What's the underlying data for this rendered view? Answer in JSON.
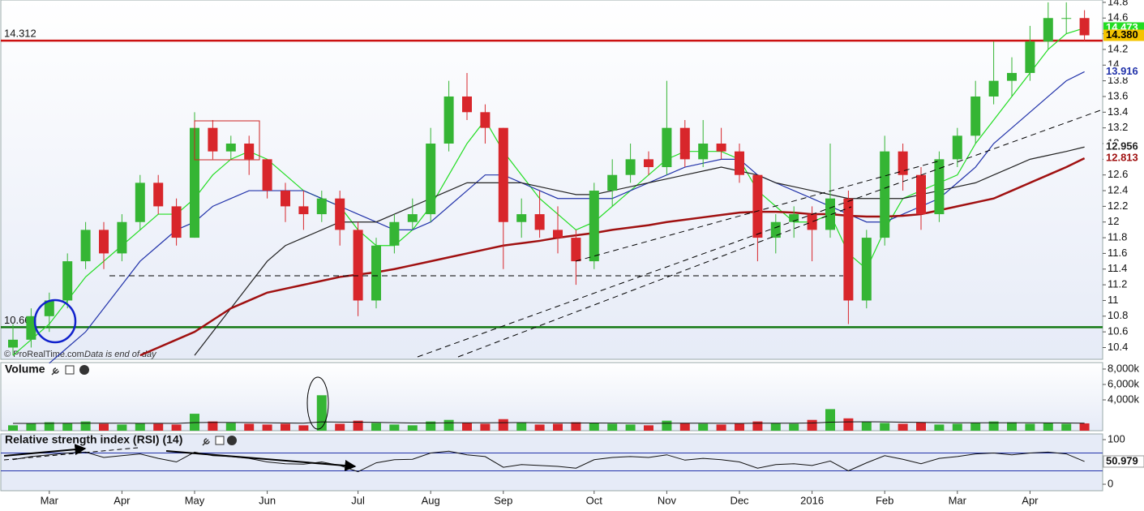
{
  "chart_data": [
    {
      "type": "candlestick",
      "categories": [
        null,
        null,
        "Mar",
        null,
        null,
        null,
        "Apr",
        null,
        null,
        null,
        "May",
        null,
        null,
        null,
        "Jun",
        null,
        null,
        null,
        null,
        "Jul",
        null,
        null,
        null,
        "Aug",
        null,
        null,
        null,
        "Sep",
        null,
        null,
        null,
        null,
        "Oct",
        null,
        null,
        null,
        "Nov",
        null,
        null,
        null,
        "Dec",
        null,
        null,
        null,
        "2016",
        null,
        null,
        null,
        "Feb",
        null,
        null,
        null,
        "Mar",
        null,
        null,
        null,
        "Apr",
        null,
        null,
        null
      ],
      "open": [
        10.4,
        10.5,
        10.8,
        11.0,
        11.5,
        11.9,
        11.6,
        12.0,
        12.5,
        12.2,
        11.8,
        13.2,
        12.9,
        13.0,
        12.8,
        12.4,
        12.2,
        12.1,
        12.3,
        11.9,
        11.0,
        11.7,
        12.0,
        12.1,
        13.0,
        13.6,
        13.4,
        13.2,
        12.0,
        12.1,
        11.9,
        11.8,
        11.5,
        12.4,
        12.6,
        12.8,
        12.7,
        13.2,
        12.8,
        13.0,
        12.9,
        12.6,
        11.8,
        12.0,
        12.1,
        11.9,
        12.3,
        11.0,
        11.8,
        12.9,
        12.6,
        12.1,
        12.8,
        13.1,
        13.6,
        13.8,
        13.9,
        14.3,
        14.6,
        14.6
      ],
      "high": [
        10.7,
        10.9,
        11.1,
        11.6,
        12.0,
        12.0,
        12.1,
        12.6,
        12.6,
        12.3,
        13.4,
        13.3,
        13.1,
        13.1,
        12.8,
        12.5,
        12.4,
        12.4,
        12.4,
        12.0,
        11.8,
        12.1,
        12.3,
        13.2,
        13.8,
        13.9,
        13.5,
        13.2,
        12.3,
        12.4,
        12.2,
        11.9,
        12.5,
        12.8,
        13.0,
        12.9,
        13.8,
        13.3,
        13.3,
        13.2,
        13.0,
        12.6,
        12.1,
        12.2,
        12.2,
        13.0,
        12.4,
        11.9,
        13.1,
        13.0,
        12.7,
        12.9,
        13.2,
        13.8,
        14.3,
        14.1,
        14.5,
        14.8,
        14.8,
        14.7
      ],
      "low": [
        10.3,
        10.4,
        10.6,
        10.9,
        11.4,
        11.4,
        11.5,
        11.9,
        12.1,
        11.7,
        11.8,
        12.8,
        12.8,
        12.6,
        12.3,
        12.0,
        11.9,
        12.0,
        11.7,
        10.8,
        10.9,
        11.6,
        11.9,
        12.0,
        12.9,
        13.3,
        13.0,
        11.4,
        11.8,
        11.8,
        11.6,
        11.2,
        11.4,
        12.2,
        12.5,
        12.6,
        12.6,
        12.7,
        12.7,
        12.8,
        12.5,
        11.5,
        11.6,
        11.8,
        11.5,
        11.8,
        10.7,
        10.9,
        11.7,
        12.4,
        11.9,
        12.0,
        12.7,
        13.0,
        13.5,
        13.6,
        13.8,
        14.2,
        14.4,
        14.3
      ],
      "close": [
        10.5,
        10.8,
        11.0,
        11.5,
        11.9,
        11.6,
        12.0,
        12.5,
        12.2,
        11.8,
        13.2,
        12.9,
        13.0,
        12.8,
        12.4,
        12.2,
        12.1,
        12.3,
        11.9,
        11.0,
        11.7,
        12.0,
        12.1,
        13.0,
        13.6,
        13.4,
        13.2,
        12.0,
        12.1,
        11.9,
        11.8,
        11.5,
        12.4,
        12.6,
        12.8,
        12.7,
        13.2,
        12.8,
        13.0,
        12.9,
        12.6,
        11.8,
        12.0,
        12.1,
        11.9,
        12.3,
        11.0,
        11.8,
        12.9,
        12.6,
        12.1,
        12.8,
        13.1,
        13.6,
        13.8,
        13.9,
        14.3,
        14.6,
        14.6,
        14.38
      ],
      "up_color": "#35b534",
      "down_color": "#d8262b",
      "series": [
        {
          "color": "#22dd22",
          "values": [
            10.3,
            10.5,
            10.7,
            11.0,
            11.3,
            11.5,
            11.7,
            11.9,
            12.1,
            12.1,
            12.3,
            12.6,
            12.8,
            12.9,
            12.8,
            12.6,
            12.4,
            12.3,
            12.2,
            11.9,
            11.7,
            11.7,
            11.9,
            12.2,
            12.6,
            13.0,
            13.3,
            12.9,
            12.6,
            12.3,
            12.1,
            11.9,
            12.0,
            12.2,
            12.4,
            12.6,
            12.8,
            12.9,
            12.9,
            12.9,
            12.8,
            12.4,
            12.2,
            12.0,
            12.0,
            12.1,
            11.6,
            11.4,
            11.9,
            12.3,
            12.4,
            12.5,
            12.6,
            13.0,
            13.3,
            13.6,
            13.9,
            14.2,
            14.4,
            14.473
          ]
        },
        {
          "color": "#2233aa",
          "values": [
            null,
            null,
            10.2,
            10.4,
            10.6,
            10.9,
            11.2,
            11.5,
            11.7,
            11.9,
            12.0,
            12.2,
            12.3,
            12.4,
            12.4,
            12.4,
            12.4,
            12.3,
            12.2,
            12.1,
            12.0,
            11.9,
            11.9,
            12.0,
            12.2,
            12.4,
            12.6,
            12.6,
            12.5,
            12.4,
            12.3,
            12.3,
            12.3,
            12.3,
            12.4,
            12.5,
            12.6,
            12.7,
            12.75,
            12.8,
            12.8,
            12.6,
            12.5,
            12.4,
            12.3,
            12.2,
            12.1,
            12.0,
            12.0,
            12.1,
            12.2,
            12.3,
            12.5,
            12.7,
            13.0,
            13.2,
            13.4,
            13.6,
            13.8,
            13.916
          ]
        },
        {
          "color": "#222222",
          "values": [
            null,
            null,
            null,
            null,
            null,
            null,
            null,
            null,
            null,
            null,
            10.3,
            10.6,
            10.9,
            11.2,
            11.5,
            11.7,
            11.8,
            11.9,
            12.0,
            12.0,
            12.0,
            12.1,
            12.2,
            12.3,
            12.4,
            12.5,
            12.5,
            12.5,
            12.5,
            12.45,
            12.4,
            12.35,
            12.35,
            12.4,
            12.45,
            12.5,
            12.55,
            12.6,
            12.65,
            12.7,
            12.65,
            12.6,
            12.5,
            12.45,
            12.4,
            12.35,
            12.3,
            12.3,
            12.3,
            12.3,
            12.35,
            12.4,
            12.45,
            12.5,
            12.6,
            12.7,
            12.8,
            12.85,
            12.9,
            12.956
          ]
        },
        {
          "color": "#a01010",
          "width": 2.5,
          "values": [
            null,
            null,
            null,
            null,
            null,
            null,
            null,
            10.3,
            10.4,
            10.5,
            10.6,
            10.75,
            10.9,
            11.0,
            11.1,
            11.15,
            11.2,
            11.25,
            11.3,
            11.33,
            11.36,
            11.4,
            11.45,
            11.5,
            11.55,
            11.6,
            11.65,
            11.7,
            11.73,
            11.76,
            11.8,
            11.83,
            11.86,
            11.9,
            11.93,
            11.96,
            12.0,
            12.03,
            12.06,
            12.09,
            12.12,
            12.13,
            12.13,
            12.12,
            12.1,
            12.1,
            12.08,
            12.07,
            12.07,
            12.08,
            12.1,
            12.15,
            12.2,
            12.25,
            12.3,
            12.4,
            12.5,
            12.6,
            12.7,
            12.813
          ]
        }
      ],
      "ylim": [
        10.25,
        14.83
      ],
      "yticks": [
        10.4,
        10.6,
        10.8,
        11,
        11.2,
        11.4,
        11.6,
        11.8,
        12,
        12.2,
        12.4,
        12.6,
        12.8,
        13,
        13.2,
        13.4,
        13.6,
        13.8,
        14,
        14.2,
        14.4,
        14.6,
        14.8
      ],
      "levels": [
        {
          "value": 14.312,
          "color": "#cc1111"
        },
        {
          "value": 10.66,
          "color": "#117711"
        }
      ],
      "right_labels": [
        {
          "value": 14.473,
          "label": "14.473",
          "color": "#22dd22",
          "text_color": "#ffffff"
        },
        {
          "value": 14.38,
          "label": "14.380",
          "color": "#f5c400",
          "text_color": "#000000"
        },
        {
          "value": 13.916,
          "label": "13.916",
          "color": "#ffffff",
          "text_color": "#2233aa"
        },
        {
          "value": 12.956,
          "label": "12.956",
          "color": "#ffffff",
          "text_color": "#222222"
        },
        {
          "value": 12.813,
          "label": "12.813",
          "color": "#ffffff",
          "text_color": "#a01010"
        }
      ],
      "source": "© ProRealTime.com",
      "note": "Data is end of day"
    },
    {
      "type": "bar",
      "title": "Volume",
      "values": [
        700000,
        900000,
        1100000,
        1000000,
        1200000,
        900000,
        800000,
        1000000,
        900000,
        800000,
        2200000,
        1200000,
        1000000,
        900000,
        800000,
        900000,
        700000,
        4600000,
        900000,
        1300000,
        1000000,
        800000,
        700000,
        1200000,
        1400000,
        1000000,
        900000,
        1500000,
        1100000,
        800000,
        900000,
        1100000,
        1000000,
        900000,
        800000,
        700000,
        1300000,
        1000000,
        900000,
        800000,
        900000,
        1200000,
        1000000,
        900000,
        1400000,
        2800000,
        1600000,
        1200000,
        1000000,
        900000,
        1100000,
        800000,
        900000,
        1000000,
        1200000,
        1100000,
        900000,
        1000000,
        900000,
        953000
      ],
      "series": [
        {
          "color": "#111111",
          "values": [
            950000,
            950000,
            960000,
            970000,
            980000,
            980000,
            970000,
            960000,
            960000,
            950000,
            1050000,
            1080000,
            1070000,
            1050000,
            1020000,
            1000000,
            980000,
            1150000,
            1120000,
            1100000,
            1080000,
            1040000,
            1000000,
            1000000,
            1020000,
            1030000,
            1020000,
            1040000,
            1050000,
            1030000,
            1010000,
            1000000,
            1000000,
            990000,
            970000,
            950000,
            970000,
            980000,
            970000,
            960000,
            950000,
            970000,
            980000,
            980000,
            1000000,
            1100000,
            1150000,
            1160000,
            1140000,
            1100000,
            1080000,
            1050000,
            1030000,
            1020000,
            1030000,
            1030000,
            1020000,
            1010000,
            1000000,
            980000
          ]
        }
      ],
      "ylim": [
        0,
        8840000
      ],
      "yticks": [
        {
          "value": 4000000,
          "label": "4,000k"
        },
        {
          "value": 6000000,
          "label": "6,000k"
        },
        {
          "value": 8000000,
          "label": "8,000k"
        }
      ]
    },
    {
      "type": "line",
      "title": "Relative strength index (RSI) (14)",
      "color": "#111111",
      "values": [
        55,
        62,
        66,
        70,
        72,
        60,
        64,
        68,
        58,
        50,
        72,
        64,
        62,
        58,
        50,
        46,
        45,
        50,
        42,
        28,
        48,
        55,
        56,
        70,
        74,
        66,
        62,
        38,
        44,
        42,
        40,
        36,
        55,
        60,
        62,
        60,
        66,
        54,
        58,
        55,
        50,
        36,
        44,
        46,
        42,
        52,
        30,
        48,
        64,
        56,
        46,
        58,
        62,
        68,
        70,
        66,
        70,
        72,
        68,
        50.979
      ],
      "levels": [
        30,
        70
      ],
      "ylim": [
        -14.5,
        112.7
      ],
      "yticks": [
        0,
        100
      ]
    }
  ]
}
